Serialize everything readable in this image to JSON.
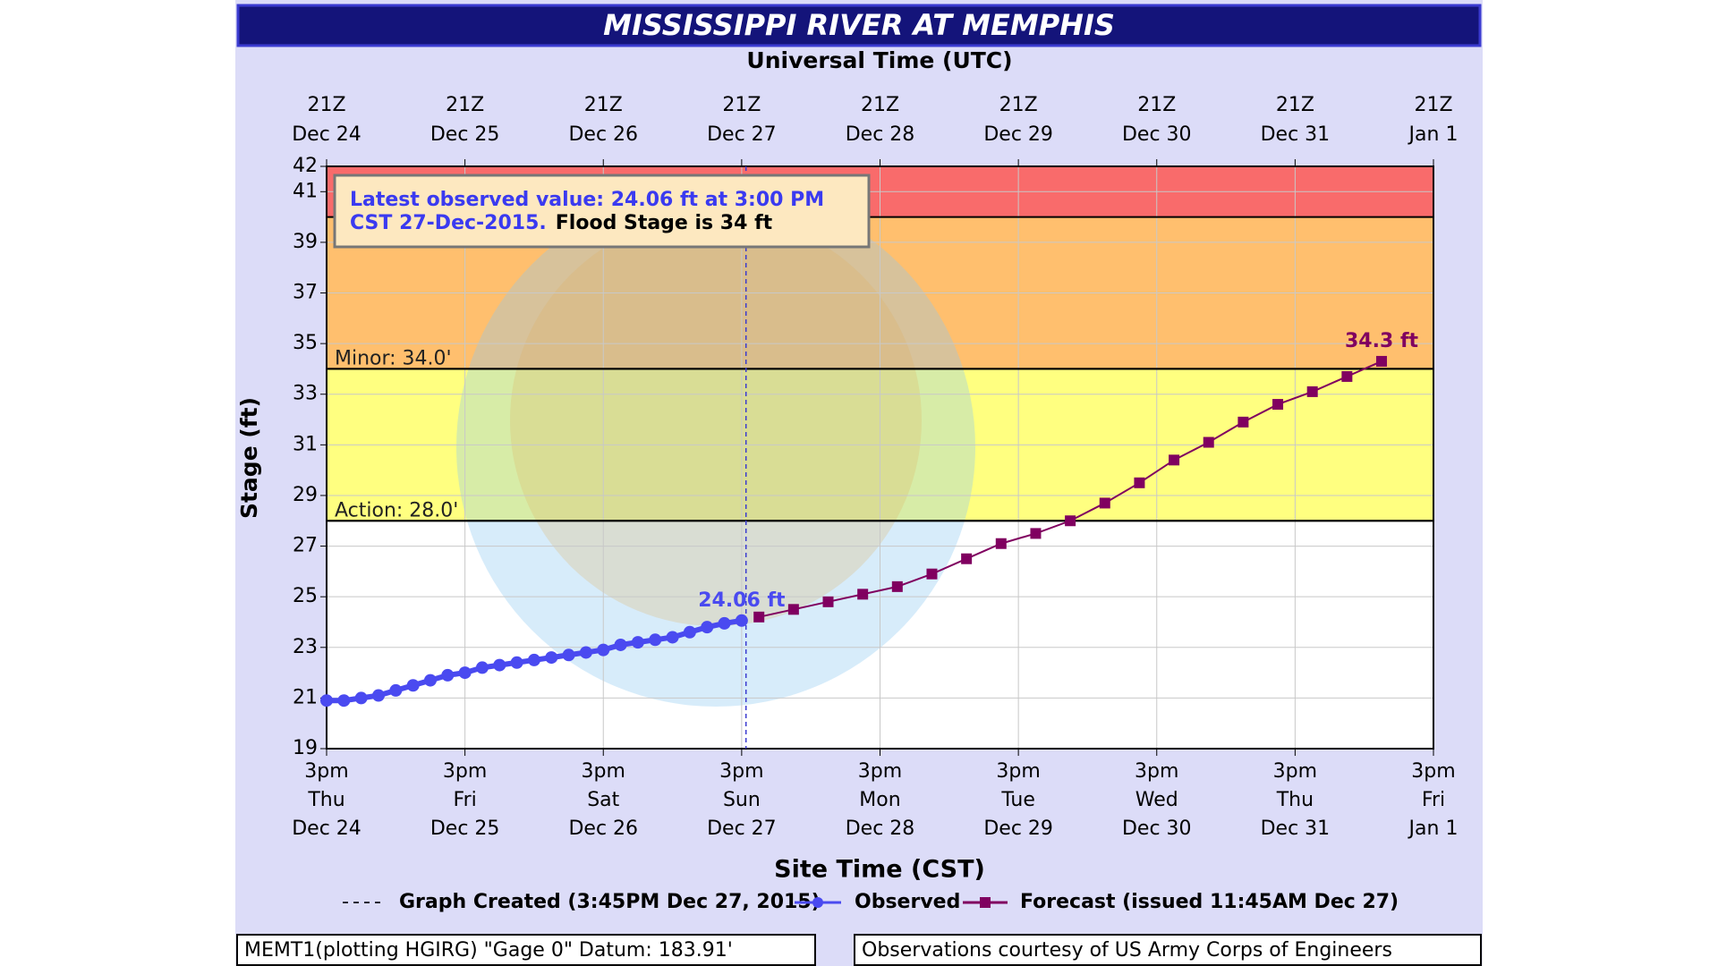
{
  "chart_data": {
    "type": "line",
    "title": "MISSISSIPPI RIVER AT MEMPHIS",
    "x2_label": "Universal Time (UTC)",
    "x_label": "Site Time (CST)",
    "y_label": "Stage (ft)",
    "ylim": [
      19,
      42
    ],
    "yticks": [
      19,
      21,
      23,
      25,
      27,
      29,
      31,
      33,
      35,
      37,
      39,
      41,
      42
    ],
    "grid": true,
    "xlim": [
      "2015-12-24 15:00",
      "2016-01-01 15:00"
    ],
    "xticks": [
      {
        "value": "2015-12-24 15:00",
        "label": [
          "3pm",
          "Thu",
          "Dec 24"
        ]
      },
      {
        "value": "2015-12-25 15:00",
        "label": [
          "3pm",
          "Fri",
          "Dec 25"
        ]
      },
      {
        "value": "2015-12-26 15:00",
        "label": [
          "3pm",
          "Sat",
          "Dec 26"
        ]
      },
      {
        "value": "2015-12-27 15:00",
        "label": [
          "3pm",
          "Sun",
          "Dec 27"
        ]
      },
      {
        "value": "2015-12-28 15:00",
        "label": [
          "3pm",
          "Mon",
          "Dec 28"
        ]
      },
      {
        "value": "2015-12-29 15:00",
        "label": [
          "3pm",
          "Tue",
          "Dec 29"
        ]
      },
      {
        "value": "2015-12-30 15:00",
        "label": [
          "3pm",
          "Wed",
          "Dec 30"
        ]
      },
      {
        "value": "2015-12-31 15:00",
        "label": [
          "3pm",
          "Thu",
          "Dec 31"
        ]
      },
      {
        "value": "2016-01-01 15:00",
        "label": [
          "3pm",
          "Fri",
          "Jan 1"
        ]
      }
    ],
    "x2ticks": [
      {
        "value": "2015-12-24 15:00",
        "label": [
          "21Z",
          "Dec 24"
        ]
      },
      {
        "value": "2015-12-25 15:00",
        "label": [
          "21Z",
          "Dec 25"
        ]
      },
      {
        "value": "2015-12-26 15:00",
        "label": [
          "21Z",
          "Dec 26"
        ]
      },
      {
        "value": "2015-12-27 15:00",
        "label": [
          "21Z",
          "Dec 27"
        ]
      },
      {
        "value": "2015-12-28 15:00",
        "label": [
          "21Z",
          "Dec 28"
        ]
      },
      {
        "value": "2015-12-29 15:00",
        "label": [
          "21Z",
          "Dec 29"
        ]
      },
      {
        "value": "2015-12-30 15:00",
        "label": [
          "21Z",
          "Dec 30"
        ]
      },
      {
        "value": "2015-12-31 15:00",
        "label": [
          "21Z",
          "Dec 31"
        ]
      },
      {
        "value": "2016-01-01 15:00",
        "label": [
          "21Z",
          "Jan 1"
        ]
      }
    ],
    "bands": [
      {
        "from": 28,
        "to": 34,
        "color": "#ffff80"
      },
      {
        "from": 34,
        "to": 40,
        "color": "#ffbf6e"
      },
      {
        "from": 40,
        "to": 42,
        "color": "#f96b6b"
      }
    ],
    "thresholds": [
      {
        "value": 34,
        "label": "Minor: 34.0'"
      },
      {
        "value": 28,
        "label": "Action: 28.0'"
      }
    ],
    "created": {
      "x": "2015-12-27 15:45",
      "label": "Graph Created (3:45PM Dec 27, 2015)"
    },
    "series": [
      {
        "name": "Observed",
        "color": "#4a4af0",
        "marker": "circle",
        "x": [
          "2015-12-24 15:00",
          "2015-12-24 18:00",
          "2015-12-24 21:00",
          "2015-12-25 00:00",
          "2015-12-25 03:00",
          "2015-12-25 06:00",
          "2015-12-25 09:00",
          "2015-12-25 12:00",
          "2015-12-25 15:00",
          "2015-12-25 18:00",
          "2015-12-25 21:00",
          "2015-12-26 00:00",
          "2015-12-26 03:00",
          "2015-12-26 06:00",
          "2015-12-26 09:00",
          "2015-12-26 12:00",
          "2015-12-26 15:00",
          "2015-12-26 18:00",
          "2015-12-26 21:00",
          "2015-12-27 00:00",
          "2015-12-27 03:00",
          "2015-12-27 06:00",
          "2015-12-27 09:00",
          "2015-12-27 12:00",
          "2015-12-27 15:00"
        ],
        "values": [
          20.9,
          20.9,
          21.0,
          21.1,
          21.3,
          21.5,
          21.7,
          21.9,
          22.0,
          22.2,
          22.3,
          22.4,
          22.5,
          22.6,
          22.7,
          22.8,
          22.9,
          23.1,
          23.2,
          23.3,
          23.4,
          23.6,
          23.8,
          23.95,
          24.06
        ],
        "value_labels": [
          null,
          null,
          null,
          null,
          null,
          null,
          null,
          null,
          null,
          null,
          null,
          null,
          null,
          null,
          null,
          null,
          null,
          null,
          null,
          null,
          null,
          null,
          null,
          null,
          "24.06 ft"
        ]
      },
      {
        "name": "Forecast (issued 11:45AM Dec 27)",
        "color": "#800060",
        "marker": "square",
        "x": [
          "2015-12-27 18:00",
          "2015-12-28 00:00",
          "2015-12-28 06:00",
          "2015-12-28 12:00",
          "2015-12-28 18:00",
          "2015-12-29 00:00",
          "2015-12-29 06:00",
          "2015-12-29 12:00",
          "2015-12-29 18:00",
          "2015-12-30 00:00",
          "2015-12-30 06:00",
          "2015-12-30 12:00",
          "2015-12-30 18:00",
          "2015-12-31 00:00",
          "2015-12-31 06:00",
          "2015-12-31 12:00",
          "2015-12-31 18:00",
          "2016-01-01 00:00",
          "2016-01-01 06:00"
        ],
        "values": [
          24.2,
          24.5,
          24.8,
          25.1,
          25.4,
          25.9,
          26.5,
          27.1,
          27.5,
          28.0,
          28.7,
          29.5,
          30.4,
          31.1,
          31.9,
          32.6,
          33.1,
          33.7,
          34.3
        ],
        "value_labels": [
          null,
          null,
          null,
          null,
          null,
          null,
          null,
          null,
          null,
          null,
          null,
          null,
          null,
          null,
          null,
          null,
          null,
          null,
          "34.3 ft"
        ]
      }
    ],
    "annotation": {
      "observed_lines": [
        "Latest observed value: 24.06 ft at 3:00 PM",
        "CST 27-Dec-2015."
      ],
      "flood_stage": "Flood Stage is 34 ft"
    },
    "footer": {
      "left": "MEMT1(plotting HGIRG) \"Gage 0\" Datum: 183.91'",
      "right": "Observations courtesy of US Army Corps of Engineers"
    }
  }
}
